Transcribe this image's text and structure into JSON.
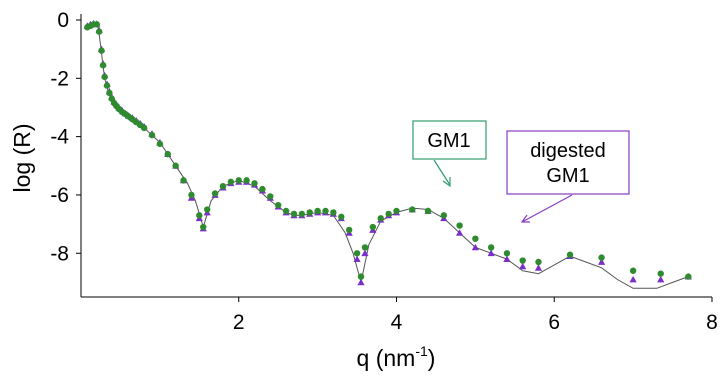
{
  "chart_data": {
    "type": "scatter",
    "title": "",
    "xlabel": "q (nm",
    "xlabel_sup": "-1",
    "xlabel_close": ")",
    "ylabel": "log (R)",
    "xlim": [
      0,
      8
    ],
    "ylim": [
      -9.5,
      0
    ],
    "xticks": [
      {
        "value": 2,
        "label": "2"
      },
      {
        "value": 4,
        "label": "4"
      },
      {
        "value": 6,
        "label": "6"
      },
      {
        "value": 8,
        "label": "8"
      }
    ],
    "yticks": [
      {
        "value": 0,
        "label": "0"
      },
      {
        "value": -2,
        "label": "-2"
      },
      {
        "value": -4,
        "label": "-4"
      },
      {
        "value": -6,
        "label": "-6"
      },
      {
        "value": -8,
        "label": "-8"
      }
    ],
    "grid": false,
    "colors": {
      "gm1": "#2e8b2e",
      "digested": "#7b2fc9",
      "fit": "#555555",
      "gm1_box": "#2e9e6e",
      "digested_box": "#8a3cc4",
      "axis": "#000000"
    },
    "series": [
      {
        "kind": "fit",
        "x": [
          0.08,
          0.12,
          0.16,
          0.2,
          0.22,
          0.25,
          0.28,
          0.3,
          0.34,
          0.38,
          0.42,
          0.48,
          0.55,
          0.65,
          0.8,
          1.0,
          1.2,
          1.35,
          1.45,
          1.55,
          1.65,
          1.8,
          2.0,
          2.2,
          2.4,
          2.6,
          2.7,
          2.8,
          3.0,
          3.2,
          3.35,
          3.45,
          3.55,
          3.65,
          3.8,
          4.0,
          4.2,
          4.4,
          4.6,
          4.8,
          5.0,
          5.2,
          5.4,
          5.6,
          5.8,
          6.0,
          6.2,
          6.4,
          6.6,
          6.8,
          7.0,
          7.3,
          7.5,
          7.7
        ],
        "y": [
          -0.2,
          -0.15,
          -0.12,
          -0.13,
          -0.3,
          -0.9,
          -1.6,
          -2.0,
          -2.4,
          -2.7,
          -2.9,
          -3.1,
          -3.3,
          -3.5,
          -3.7,
          -4.2,
          -5.0,
          -5.6,
          -6.2,
          -7.1,
          -6.2,
          -5.7,
          -5.5,
          -5.7,
          -6.2,
          -6.6,
          -6.7,
          -6.7,
          -6.6,
          -6.7,
          -7.3,
          -8.0,
          -9.0,
          -7.7,
          -6.9,
          -6.6,
          -6.45,
          -6.5,
          -6.8,
          -7.3,
          -7.8,
          -8.0,
          -8.2,
          -8.6,
          -8.7,
          -8.4,
          -8.1,
          -8.3,
          -8.5,
          -8.9,
          -9.2,
          -9.2,
          -9.0,
          -8.8
        ]
      },
      {
        "name": "digested GM1",
        "marker": "triangle",
        "x": [
          0.08,
          0.12,
          0.16,
          0.2,
          0.23,
          0.26,
          0.28,
          0.3,
          0.33,
          0.36,
          0.39,
          0.42,
          0.45,
          0.48,
          0.52,
          0.56,
          0.6,
          0.65,
          0.7,
          0.75,
          0.8,
          0.9,
          1.0,
          1.1,
          1.2,
          1.3,
          1.4,
          1.5,
          1.55,
          1.6,
          1.7,
          1.8,
          1.9,
          2.0,
          2.1,
          2.2,
          2.3,
          2.4,
          2.5,
          2.6,
          2.7,
          2.8,
          2.9,
          3.0,
          3.1,
          3.2,
          3.3,
          3.4,
          3.5,
          3.55,
          3.6,
          3.7,
          3.8,
          3.9,
          4.0,
          4.2,
          4.4,
          4.6,
          4.8,
          5.0,
          5.2,
          5.4,
          5.6,
          5.8,
          6.2,
          6.6,
          7.0,
          7.35,
          7.7
        ],
        "y": [
          -0.2,
          -0.15,
          -0.12,
          -0.13,
          -0.35,
          -1.0,
          -1.5,
          -1.9,
          -2.2,
          -2.45,
          -2.65,
          -2.8,
          -2.9,
          -3.0,
          -3.1,
          -3.2,
          -3.28,
          -3.35,
          -3.45,
          -3.55,
          -3.65,
          -3.9,
          -4.2,
          -4.6,
          -5.0,
          -5.5,
          -6.1,
          -6.8,
          -7.15,
          -6.6,
          -6.0,
          -5.75,
          -5.6,
          -5.55,
          -5.55,
          -5.65,
          -5.85,
          -6.1,
          -6.4,
          -6.6,
          -6.7,
          -6.7,
          -6.65,
          -6.6,
          -6.6,
          -6.65,
          -6.8,
          -7.3,
          -8.2,
          -9.0,
          -8.0,
          -7.2,
          -6.85,
          -6.7,
          -6.6,
          -6.5,
          -6.55,
          -6.8,
          -7.3,
          -7.8,
          -8.0,
          -8.2,
          -8.45,
          -8.5,
          -8.1,
          -8.3,
          -8.9,
          -8.9,
          -8.8
        ]
      },
      {
        "name": "GM1",
        "marker": "circle",
        "x": [
          0.08,
          0.12,
          0.16,
          0.2,
          0.23,
          0.26,
          0.28,
          0.3,
          0.33,
          0.36,
          0.39,
          0.42,
          0.45,
          0.48,
          0.52,
          0.56,
          0.6,
          0.65,
          0.7,
          0.75,
          0.8,
          0.9,
          1.0,
          1.1,
          1.2,
          1.3,
          1.4,
          1.5,
          1.55,
          1.6,
          1.7,
          1.8,
          1.9,
          2.0,
          2.1,
          2.2,
          2.3,
          2.4,
          2.5,
          2.6,
          2.7,
          2.8,
          2.9,
          3.0,
          3.1,
          3.2,
          3.3,
          3.4,
          3.5,
          3.55,
          3.6,
          3.7,
          3.8,
          3.9,
          4.0,
          4.2,
          4.4,
          4.6,
          4.8,
          5.0,
          5.2,
          5.4,
          5.6,
          5.8,
          6.2,
          6.6,
          7.0,
          7.35,
          7.7
        ],
        "y": [
          -0.25,
          -0.2,
          -0.15,
          -0.15,
          -0.4,
          -1.05,
          -1.55,
          -1.95,
          -2.25,
          -2.5,
          -2.7,
          -2.85,
          -2.95,
          -3.05,
          -3.15,
          -3.22,
          -3.3,
          -3.4,
          -3.5,
          -3.6,
          -3.7,
          -3.95,
          -4.25,
          -4.6,
          -5.0,
          -5.5,
          -6.0,
          -6.7,
          -7.1,
          -6.5,
          -5.95,
          -5.7,
          -5.55,
          -5.5,
          -5.5,
          -5.6,
          -5.8,
          -6.05,
          -6.35,
          -6.55,
          -6.65,
          -6.65,
          -6.6,
          -6.55,
          -6.55,
          -6.6,
          -6.75,
          -7.2,
          -8.0,
          -8.8,
          -7.8,
          -7.1,
          -6.8,
          -6.65,
          -6.55,
          -6.5,
          -6.55,
          -6.7,
          -7.05,
          -7.5,
          -7.8,
          -8.0,
          -8.25,
          -8.3,
          -8.05,
          -8.15,
          -8.6,
          -8.7,
          -8.8
        ]
      }
    ],
    "annotations": [
      {
        "id": "gm1",
        "lines": [
          "GM1"
        ]
      },
      {
        "id": "digested",
        "lines": [
          "digested",
          "GM1"
        ]
      }
    ]
  }
}
